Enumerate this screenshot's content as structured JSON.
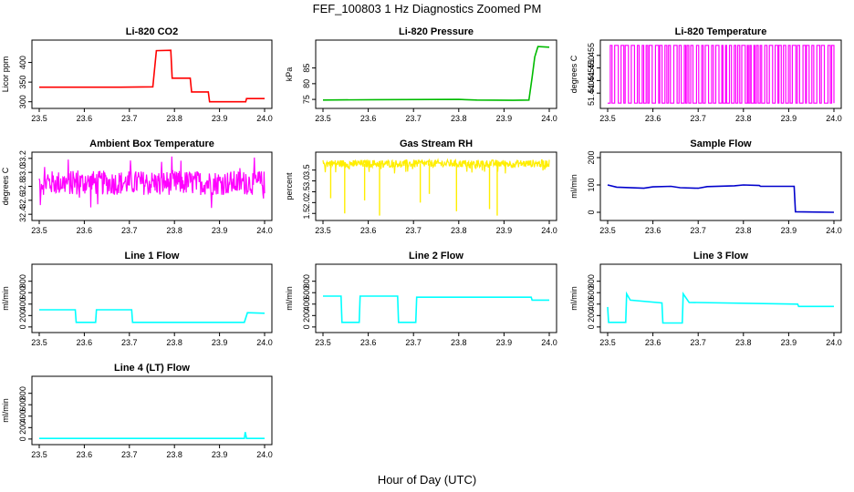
{
  "figure": {
    "title": "FEF_100803  1 Hz Diagnostics Zoomed PM",
    "xlabel": "Hour of Day (UTC)"
  },
  "chart_data": [
    {
      "type": "line",
      "title": "Li-820 CO2",
      "ylabel": "Licor ppm",
      "color": "#ff0000",
      "xlim": [
        23.5,
        24.0
      ],
      "ylim": [
        290,
        450
      ],
      "xticks": [
        "23.5",
        "23.6",
        "23.7",
        "23.8",
        "23.9",
        "24.0"
      ],
      "yticks": [
        300,
        350,
        400
      ],
      "series": [
        {
          "name": "CO2",
          "points": [
            [
              23.5,
              337
            ],
            [
              23.68,
              337
            ],
            [
              23.752,
              338
            ],
            [
              23.76,
              430
            ],
            [
              23.792,
              431
            ],
            [
              23.795,
              360
            ],
            [
              23.835,
              360
            ],
            [
              23.838,
              325
            ],
            [
              23.875,
              325
            ],
            [
              23.878,
              300
            ],
            [
              23.958,
              300
            ],
            [
              23.96,
              308
            ],
            [
              24.0,
              308
            ]
          ]
        }
      ]
    },
    {
      "type": "line",
      "title": "Li-820 Pressure",
      "ylabel": "kPa",
      "color": "#00bb00",
      "xlim": [
        23.5,
        24.0
      ],
      "ylim": [
        73,
        93
      ],
      "xticks": [
        "23.5",
        "23.6",
        "23.7",
        "23.8",
        "23.9",
        "24.0"
      ],
      "yticks": [
        75,
        80,
        85
      ],
      "series": [
        {
          "name": "Pressure",
          "points": [
            [
              23.5,
              74.8
            ],
            [
              23.62,
              74.9
            ],
            [
              23.8,
              75.0
            ],
            [
              23.84,
              74.8
            ],
            [
              23.92,
              74.7
            ],
            [
              23.955,
              74.8
            ],
            [
              23.962,
              82
            ],
            [
              23.968,
              88.5
            ],
            [
              23.975,
              91.8
            ],
            [
              24.0,
              91.6
            ]
          ]
        }
      ]
    },
    {
      "type": "line",
      "title": "Li-820 Temperature",
      "ylabel": "degrees C",
      "color": "#ff00ff",
      "xlim": [
        23.5,
        24.0
      ],
      "ylim": [
        51.435,
        51.46
      ],
      "xticks": [
        "23.5",
        "23.6",
        "23.7",
        "23.8",
        "23.9",
        "24.0"
      ],
      "yticks": [
        "51.440",
        "51.445",
        "51.450",
        "51.455"
      ],
      "series": [
        {
          "name": "Temp",
          "low": 51.436,
          "high": 51.459
        }
      ]
    },
    {
      "type": "line",
      "title": "Ambient Box Temperature",
      "ylabel": "degrees C",
      "color": "#ff00ff",
      "xlim": [
        23.5,
        24.0
      ],
      "ylim": [
        32.35,
        33.25
      ],
      "xticks": [
        "23.5",
        "23.6",
        "23.7",
        "23.8",
        "23.9",
        "24.0"
      ],
      "yticks": [
        "32.4",
        "32.6",
        "32.8",
        "33.0",
        "33.2"
      ],
      "series": [
        {
          "name": "Box",
          "center": 32.85,
          "spread": 0.35
        }
      ]
    },
    {
      "type": "line",
      "title": "Gas Stream RH",
      "ylabel": "percent",
      "color": "#ffee00",
      "xlim": [
        23.5,
        24.0
      ],
      "ylim": [
        1.3,
        4.2
      ],
      "xticks": [
        "23.5",
        "23.6",
        "23.7",
        "23.8",
        "23.9",
        "24.0"
      ],
      "yticks": [
        "1.5",
        "2.0",
        "2.5",
        "3.0",
        "3.5"
      ],
      "series": [
        {
          "name": "RH",
          "center": 3.8,
          "spikes": [
            [
              23.517,
              2.2
            ],
            [
              23.548,
              1.5
            ],
            [
              23.592,
              2.1
            ],
            [
              23.625,
              1.4
            ],
            [
              23.715,
              2.0
            ],
            [
              23.735,
              2.4
            ],
            [
              23.795,
              1.6
            ],
            [
              23.868,
              1.7
            ],
            [
              23.885,
              1.4
            ]
          ]
        }
      ]
    },
    {
      "type": "line",
      "title": "Sample Flow",
      "ylabel": "ml/min",
      "color": "#0000cc",
      "xlim": [
        23.5,
        24.0
      ],
      "ylim": [
        -20,
        210
      ],
      "xticks": [
        "23.5",
        "23.6",
        "23.7",
        "23.8",
        "23.9",
        "24.0"
      ],
      "yticks": [
        0,
        100,
        200
      ],
      "series": [
        {
          "name": "Sample",
          "points": [
            [
              23.5,
              100
            ],
            [
              23.52,
              92
            ],
            [
              23.58,
              88
            ],
            [
              23.6,
              93
            ],
            [
              23.64,
              95
            ],
            [
              23.66,
              90
            ],
            [
              23.7,
              88
            ],
            [
              23.72,
              94
            ],
            [
              23.78,
              97
            ],
            [
              23.8,
              100
            ],
            [
              23.835,
              98
            ],
            [
              23.838,
              95
            ],
            [
              23.912,
              95
            ],
            [
              23.915,
              2
            ],
            [
              24.0,
              0
            ]
          ]
        }
      ]
    },
    {
      "type": "line",
      "title": "Line 1 Flow",
      "ylabel": "ml/min",
      "color": "#00ffff",
      "xlim": [
        23.5,
        24.0
      ],
      "ylim": [
        -50,
        1050
      ],
      "xticks": [
        "23.5",
        "23.6",
        "23.7",
        "23.8",
        "23.9",
        "24.0"
      ],
      "yticks": [
        0,
        200,
        400,
        600,
        800
      ],
      "series": [
        {
          "name": "L1",
          "points": [
            [
              23.5,
              300
            ],
            [
              23.58,
              300
            ],
            [
              23.582,
              80
            ],
            [
              23.625,
              80
            ],
            [
              23.627,
              300
            ],
            [
              23.705,
              300
            ],
            [
              23.707,
              80
            ],
            [
              23.955,
              80
            ],
            [
              23.962,
              250
            ],
            [
              24.0,
              240
            ]
          ]
        }
      ]
    },
    {
      "type": "line",
      "title": "Line 2 Flow",
      "ylabel": "ml/min",
      "color": "#00ffff",
      "xlim": [
        23.5,
        24.0
      ],
      "ylim": [
        -50,
        1050
      ],
      "xticks": [
        "23.5",
        "23.6",
        "23.7",
        "23.8",
        "23.9",
        "24.0"
      ],
      "yticks": [
        0,
        200,
        400,
        600,
        800
      ],
      "series": [
        {
          "name": "L2",
          "points": [
            [
              23.5,
              540
            ],
            [
              23.54,
              540
            ],
            [
              23.542,
              80
            ],
            [
              23.58,
              80
            ],
            [
              23.582,
              540
            ],
            [
              23.665,
              540
            ],
            [
              23.667,
              80
            ],
            [
              23.705,
              80
            ],
            [
              23.707,
              520
            ],
            [
              23.96,
              520
            ],
            [
              23.962,
              470
            ],
            [
              24.0,
              470
            ]
          ]
        }
      ]
    },
    {
      "type": "line",
      "title": "Line 3 Flow",
      "ylabel": "ml/min",
      "color": "#00ffff",
      "xlim": [
        23.5,
        24.0
      ],
      "ylim": [
        -50,
        1050
      ],
      "xticks": [
        "23.5",
        "23.6",
        "23.7",
        "23.8",
        "23.9",
        "24.0"
      ],
      "yticks": [
        0,
        200,
        400,
        600,
        800
      ],
      "series": [
        {
          "name": "L3",
          "points": [
            [
              23.5,
              350
            ],
            [
              23.502,
              80
            ],
            [
              23.54,
              80
            ],
            [
              23.542,
              580
            ],
            [
              23.55,
              470
            ],
            [
              23.62,
              420
            ],
            [
              23.622,
              70
            ],
            [
              23.665,
              70
            ],
            [
              23.667,
              580
            ],
            [
              23.68,
              430
            ],
            [
              23.92,
              400
            ],
            [
              23.922,
              360
            ],
            [
              24.0,
              360
            ]
          ]
        }
      ]
    },
    {
      "type": "line",
      "title": "Line 4 (LT) Flow",
      "ylabel": "ml/min",
      "color": "#00ffff",
      "xlim": [
        23.5,
        24.0
      ],
      "ylim": [
        -50,
        1050
      ],
      "xticks": [
        "23.5",
        "23.6",
        "23.7",
        "23.8",
        "23.9",
        "24.0"
      ],
      "yticks": [
        0,
        200,
        400,
        600,
        800
      ],
      "series": [
        {
          "name": "L4",
          "points": [
            [
              23.5,
              10
            ],
            [
              23.955,
              10
            ],
            [
              23.957,
              120
            ],
            [
              23.96,
              10
            ],
            [
              24.0,
              10
            ]
          ]
        }
      ]
    }
  ]
}
